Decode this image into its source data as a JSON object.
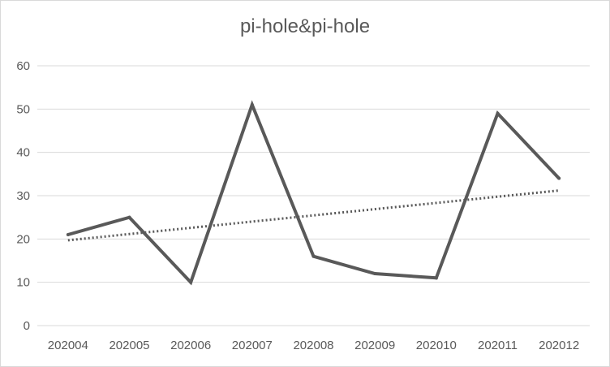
{
  "chart_data": {
    "type": "line",
    "title": "pi-hole&pi-hole",
    "xlabel": "",
    "ylabel": "",
    "categories": [
      "202004",
      "202005",
      "202006",
      "202007",
      "202008",
      "202009",
      "202010",
      "202011",
      "202012"
    ],
    "series": [
      {
        "values": [
          21,
          25,
          10,
          51,
          16,
          12,
          11,
          49,
          34
        ],
        "color": "#595959",
        "style": "solid"
      }
    ],
    "trendline": {
      "type": "linear",
      "style": "dotted",
      "color": "#595959",
      "start": 19.7,
      "end": 31.2
    },
    "ylim": [
      0,
      60
    ],
    "yticks": [
      0,
      10,
      20,
      30,
      40,
      50,
      60
    ],
    "grid": true,
    "legend": "none"
  }
}
